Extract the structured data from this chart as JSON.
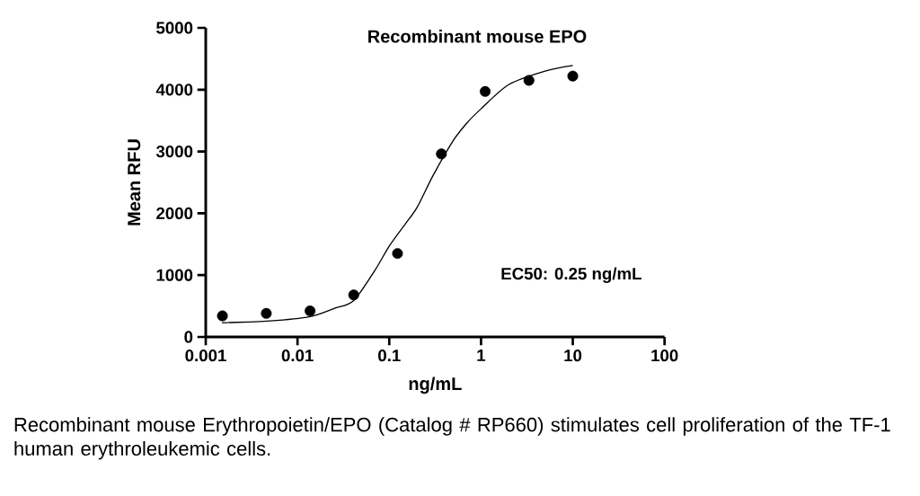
{
  "chart_data": {
    "type": "scatter",
    "title": "Recombinant mouse EPO",
    "xlabel": "ng/mL",
    "ylabel": "Mean RFU",
    "log": "x",
    "xlim": [
      0.001,
      100
    ],
    "xticks": [
      0.001,
      0.01,
      0.1,
      1,
      10,
      100
    ],
    "ylim": [
      0,
      5000
    ],
    "yticks": [
      0,
      1000,
      2000,
      3000,
      4000,
      5000
    ],
    "marker": "circle",
    "series": [
      {
        "color": "#000000",
        "x": [
          0.00152,
          0.00457,
          0.0137,
          0.041,
          0.123,
          0.37,
          1.11,
          3.33,
          10
        ],
        "values": [
          340,
          380,
          420,
          680,
          1350,
          2960,
          3970,
          4150,
          4220
        ]
      },
      {
        "type": "line",
        "color": "#000000",
        "marker": "none",
        "line_style": "solid",
        "x": [
          0.0015,
          0.005,
          0.0137,
          0.025,
          0.041,
          0.07,
          0.1,
          0.15,
          0.2,
          0.3,
          0.5,
          0.7,
          1,
          2,
          5,
          10
        ],
        "values": [
          230,
          260,
          330,
          460,
          590,
          1080,
          1470,
          1830,
          2090,
          2610,
          3180,
          3460,
          3690,
          4080,
          4300,
          4390
        ]
      }
    ],
    "annotations": [
      "EC50: 0.25 ng/mL",
      "Recombinant mouse Erythropoietin/EPO (Catalog # RP660) stimulates cell proliferation of the TF-1 human erythroleukemic cells."
    ]
  }
}
